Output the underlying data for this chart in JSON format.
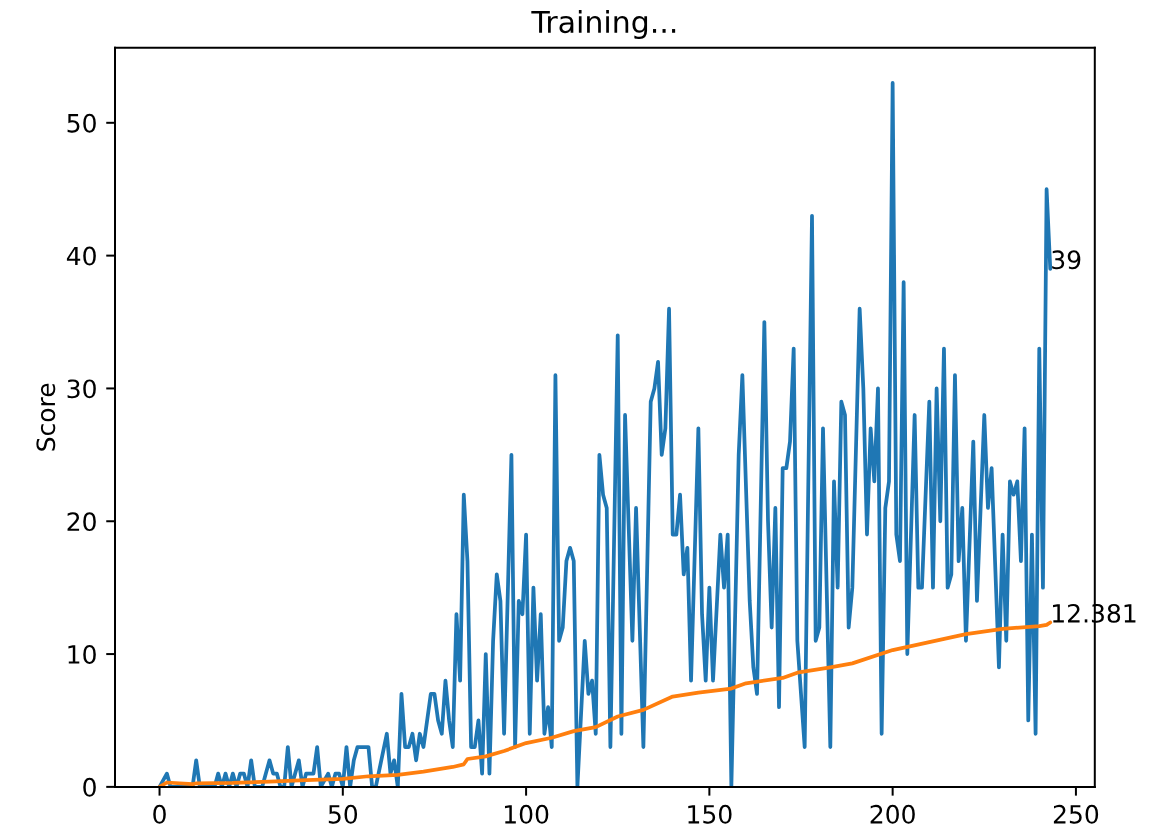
{
  "chart_data": {
    "type": "line",
    "title": "Training...",
    "ylabel": "Score",
    "xlim": [
      -12.15,
      255.15
    ],
    "xticks": [
      0,
      50,
      100,
      150,
      200,
      250
    ],
    "ylim": [
      0,
      55.65
    ],
    "yticks": [
      0,
      10,
      20,
      30,
      40,
      50
    ],
    "series": [
      {
        "color": "#1f77b4",
        "x": [
          0,
          2,
          3,
          9,
          10,
          11,
          15,
          16,
          17,
          18,
          19,
          20,
          21,
          22,
          23,
          24,
          25,
          26,
          27,
          28,
          29,
          30,
          31,
          32,
          33,
          34,
          35,
          36,
          37,
          38,
          39,
          40,
          41,
          42,
          43,
          44,
          46,
          47,
          48,
          49,
          50,
          51,
          52,
          53,
          54,
          57,
          58,
          59,
          62,
          63,
          64,
          65,
          66,
          67,
          68,
          69,
          70,
          71,
          72,
          74,
          75,
          76,
          77,
          78,
          79,
          80,
          81,
          82,
          83,
          84,
          85,
          86,
          87,
          88,
          89,
          90,
          91,
          92,
          93,
          94,
          96,
          97,
          98,
          99,
          100,
          101,
          102,
          103,
          104,
          105,
          106,
          107,
          108,
          109,
          110,
          111,
          112,
          113,
          114,
          116,
          117,
          118,
          119,
          120,
          121,
          122,
          123,
          125,
          126,
          127,
          129,
          130,
          132,
          134,
          135,
          136,
          137,
          138,
          139,
          140,
          141,
          142,
          143,
          144,
          145,
          147,
          148,
          149,
          150,
          151,
          153,
          154,
          155,
          156,
          158,
          159,
          161,
          162,
          163,
          165,
          166,
          167,
          168,
          169,
          170,
          171,
          172,
          173,
          174,
          176,
          178,
          179,
          180,
          181,
          183,
          184,
          185,
          186,
          187,
          188,
          189,
          191,
          192,
          193,
          194,
          195,
          196,
          197,
          198,
          199,
          200,
          201,
          202,
          203,
          204,
          206,
          207,
          208,
          210,
          211,
          212,
          213,
          214,
          215,
          216,
          217,
          218,
          219,
          220,
          222,
          223,
          225,
          226,
          227,
          229,
          230,
          231,
          232,
          233,
          234,
          235,
          236,
          237,
          238,
          239,
          240,
          241,
          242,
          243
        ],
        "values": [
          0,
          1,
          0,
          0,
          2,
          0,
          0,
          1,
          0,
          1,
          0,
          1,
          0,
          1,
          1,
          0,
          2,
          0,
          0,
          0,
          1,
          2,
          1,
          1,
          0,
          0,
          3,
          0,
          1,
          2,
          0,
          1,
          1,
          1,
          3,
          0,
          1,
          0,
          1,
          1,
          0,
          3,
          0,
          2,
          3,
          3,
          0,
          0,
          4,
          1,
          2,
          0,
          7,
          3,
          3,
          4,
          2,
          4,
          3,
          7,
          7,
          5,
          4,
          8,
          5,
          3,
          13,
          8,
          22,
          17,
          3,
          3,
          5,
          1,
          10,
          1,
          11,
          16,
          14,
          4,
          25,
          3,
          14,
          13,
          19,
          4,
          15,
          8,
          13,
          4,
          6,
          3,
          31,
          11,
          12,
          17,
          18,
          17,
          0,
          11,
          7,
          8,
          4,
          25,
          22,
          21,
          3,
          34,
          4,
          28,
          11,
          21,
          3,
          29,
          30,
          32,
          25,
          27,
          36,
          19,
          19,
          22,
          16,
          18,
          8,
          27,
          13,
          8,
          15,
          8,
          19,
          15,
          19,
          0,
          25,
          31,
          14,
          9,
          7,
          35,
          20,
          12,
          21,
          6,
          24,
          24,
          26,
          33,
          11,
          3,
          43,
          11,
          12,
          27,
          3,
          23,
          15,
          29,
          28,
          12,
          15,
          36,
          30,
          19,
          27,
          23,
          30,
          4,
          21,
          23,
          53,
          19,
          17,
          38,
          10,
          28,
          15,
          15,
          29,
          15,
          30,
          20,
          33,
          15,
          16,
          31,
          17,
          21,
          11,
          26,
          14,
          28,
          21,
          24,
          9,
          19,
          11,
          23,
          22,
          23,
          17,
          27,
          5,
          19,
          4,
          33,
          15,
          45,
          39
        ]
      },
      {
        "color": "#ff7f0e",
        "x": [
          0,
          2,
          9,
          10,
          20,
          30,
          40,
          50,
          57,
          65,
          72,
          80,
          83,
          84,
          89,
          94,
          100,
          107,
          113,
          119,
          125,
          132,
          140,
          147,
          156,
          160,
          170,
          174,
          183,
          189,
          200,
          210,
          220,
          230,
          240,
          242,
          243
        ],
        "values": [
          0,
          0.33,
          0.2,
          0.27,
          0.3,
          0.4,
          0.5,
          0.6,
          0.8,
          0.9,
          1.15,
          1.5,
          1.7,
          2.1,
          2.3,
          2.7,
          3.3,
          3.7,
          4.2,
          4.5,
          5.3,
          5.8,
          6.8,
          7.1,
          7.4,
          7.8,
          8.2,
          8.6,
          9.0,
          9.3,
          10.3,
          10.9,
          11.5,
          11.9,
          12.1,
          12.2,
          12.381
        ]
      }
    ],
    "annotations": [
      {
        "text": "39",
        "x": 243,
        "y": 39
      },
      {
        "text": "12.381",
        "x": 243,
        "y": 12.381
      }
    ]
  }
}
